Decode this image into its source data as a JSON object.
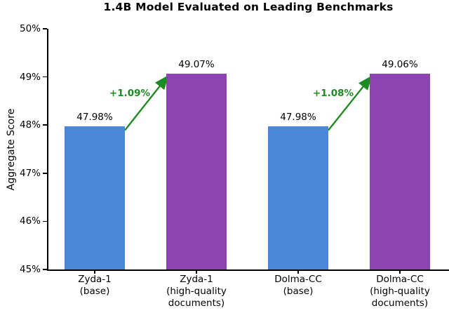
{
  "chart_data": {
    "type": "bar",
    "title": "1.4B Model Evaluated on Leading Benchmarks",
    "xlabel": "",
    "ylabel": "Aggregate Score",
    "ylim": [
      45,
      50
    ],
    "yticks": [
      {
        "value": 45,
        "label": "45%"
      },
      {
        "value": 46,
        "label": "46%"
      },
      {
        "value": 47,
        "label": "47%"
      },
      {
        "value": 48,
        "label": "48%"
      },
      {
        "value": 49,
        "label": "49%"
      },
      {
        "value": 50,
        "label": "50%"
      }
    ],
    "grid": false,
    "legend": null,
    "bars": [
      {
        "category_lines": [
          "Zyda-1",
          "(base)"
        ],
        "value": 47.98,
        "value_label": "47.98%",
        "color": "#4a87d9",
        "name": "zyda-1-base"
      },
      {
        "category_lines": [
          "Zyda-1",
          "(high-quality",
          "documents)"
        ],
        "value": 49.07,
        "value_label": "49.07%",
        "color": "#8b44b0",
        "name": "zyda-1-high-quality"
      },
      {
        "category_lines": [
          "Dolma-CC",
          "(base)"
        ],
        "value": 47.98,
        "value_label": "47.98%",
        "color": "#4a87d9",
        "name": "dolma-cc-base"
      },
      {
        "category_lines": [
          "Dolma-CC",
          "(high-quality",
          "documents)"
        ],
        "value": 49.06,
        "value_label": "49.06%",
        "color": "#8b44b0",
        "name": "dolma-cc-high-quality"
      }
    ],
    "annotations": [
      {
        "text": "+1.09%",
        "from_bar": 0,
        "to_bar": 1
      },
      {
        "text": "+1.08%",
        "from_bar": 2,
        "to_bar": 3
      }
    ],
    "annotation_color": "#1e8b22",
    "base_bar_color": "#4a87d9",
    "improved_bar_color": "#8b44b0",
    "axis_color": "#000000"
  }
}
